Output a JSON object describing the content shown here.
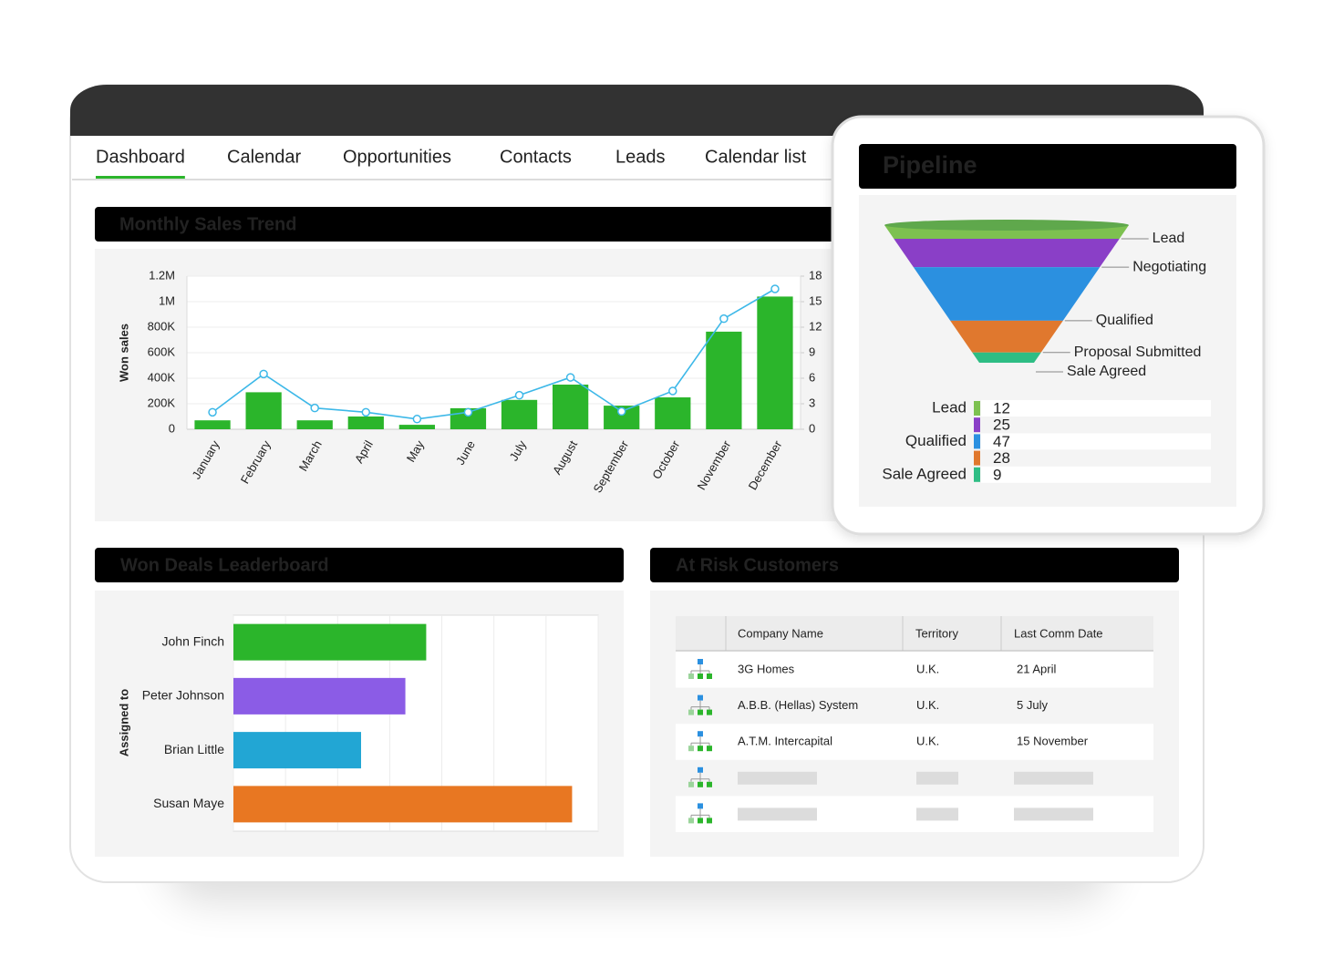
{
  "tabs": [
    "Dashboard",
    "Calendar",
    "Opportunities",
    "Contacts",
    "Leads",
    "Calendar list"
  ],
  "active_tab": 0,
  "chart_data": [
    {
      "type": "bar",
      "title": "Monthly Sales Trend",
      "y_label": "Won sales",
      "categories": [
        "January",
        "February",
        "March",
        "April",
        "May",
        "June",
        "July",
        "August",
        "September",
        "October",
        "November",
        "December"
      ],
      "series": [
        {
          "color": "#2bb52b",
          "values": [
            70000,
            290000,
            70000,
            100000,
            35000,
            165000,
            230000,
            350000,
            185000,
            250000,
            765000,
            1040000
          ]
        },
        {
          "type": "line",
          "axis": "y2",
          "color": "#3db8e8",
          "values": [
            2,
            6.5,
            2.5,
            2,
            1.2,
            2,
            4,
            6.1,
            2.1,
            4.5,
            13,
            16.5
          ]
        }
      ],
      "ylim": [
        0,
        1200000
      ],
      "yticks": [
        0,
        {
          "value": 200000,
          "label": "200K"
        },
        {
          "value": 400000,
          "label": "400K"
        },
        {
          "value": 600000,
          "label": "600K"
        },
        {
          "value": 800000,
          "label": "800K"
        },
        {
          "value": 1000000,
          "label": "1M"
        },
        {
          "value": 1200000,
          "label": "1.2M"
        }
      ],
      "y2lim": [
        0,
        18
      ],
      "y2ticks": [
        0,
        3,
        6,
        9,
        12,
        15,
        18
      ],
      "grid": true
    },
    {
      "type": "bar",
      "orientation": "horizontal",
      "title": "Won Deals Leaderboard",
      "y_label": "Assigned to",
      "categories": [
        "John Finch",
        "Peter Johnson",
        "Brian Little",
        "Susan Maye"
      ],
      "values": [
        3.7,
        3.3,
        2.45,
        6.5
      ],
      "colors": [
        "#2bb52b",
        "#8b5ce6",
        "#22a6d4",
        "#e87722"
      ],
      "xlim": [
        0,
        7
      ],
      "xticks": [
        0,
        1,
        2,
        3,
        4,
        5,
        6,
        7
      ],
      "tick_labels": false,
      "grid": true
    },
    {
      "type": "funnel",
      "title": "Pipeline",
      "categories": [
        "Lead",
        "Negotiating",
        "Qualified",
        "Proposal Submitted",
        "Sale Agreed"
      ],
      "values": [
        12,
        25,
        47,
        28,
        9
      ],
      "colors": [
        "#7dc150",
        "#8a3fc7",
        "#2b90e0",
        "#e0782e",
        "#2ebd84"
      ],
      "legend_label_every": 2
    }
  ],
  "at_risk": {
    "title": "At Risk Customers",
    "table": {
      "columns": [
        "Company Name",
        "Territory",
        "Last Comm Date"
      ],
      "rows": [
        [
          "3G Homes",
          "U.K.",
          "21 April"
        ],
        [
          "A.B.B. (Hellas) System",
          "U.K.",
          "5 July"
        ],
        [
          "A.T.M. Intercapital",
          "U.K.",
          "15 November"
        ]
      ],
      "placeholder_rows": 2
    }
  }
}
